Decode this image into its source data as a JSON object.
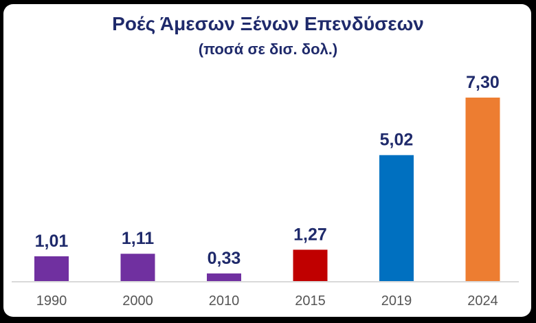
{
  "chart_data": {
    "type": "bar",
    "title": "Ροές Άμεσων Ξένων Επενδύσεων",
    "subtitle": "(ποσά σε δισ. δολ.)",
    "categories": [
      "1990",
      "2000",
      "2010",
      "2015",
      "2019",
      "2024"
    ],
    "values": [
      1.01,
      1.11,
      0.33,
      1.27,
      5.02,
      7.3
    ],
    "value_labels": [
      "1,01",
      "1,11",
      "0,33",
      "1,27",
      "5,02",
      "7,30"
    ],
    "bar_colors": [
      "#7030a0",
      "#7030a0",
      "#7030a0",
      "#c00000",
      "#0070c0",
      "#ed7d31"
    ],
    "ylim": [
      0,
      7.3
    ],
    "grid": false,
    "xlabel": "",
    "ylabel": ""
  },
  "colors": {
    "title": "#1f2a6b",
    "axis": "#d9d9d9",
    "tick_text": "#555555"
  }
}
